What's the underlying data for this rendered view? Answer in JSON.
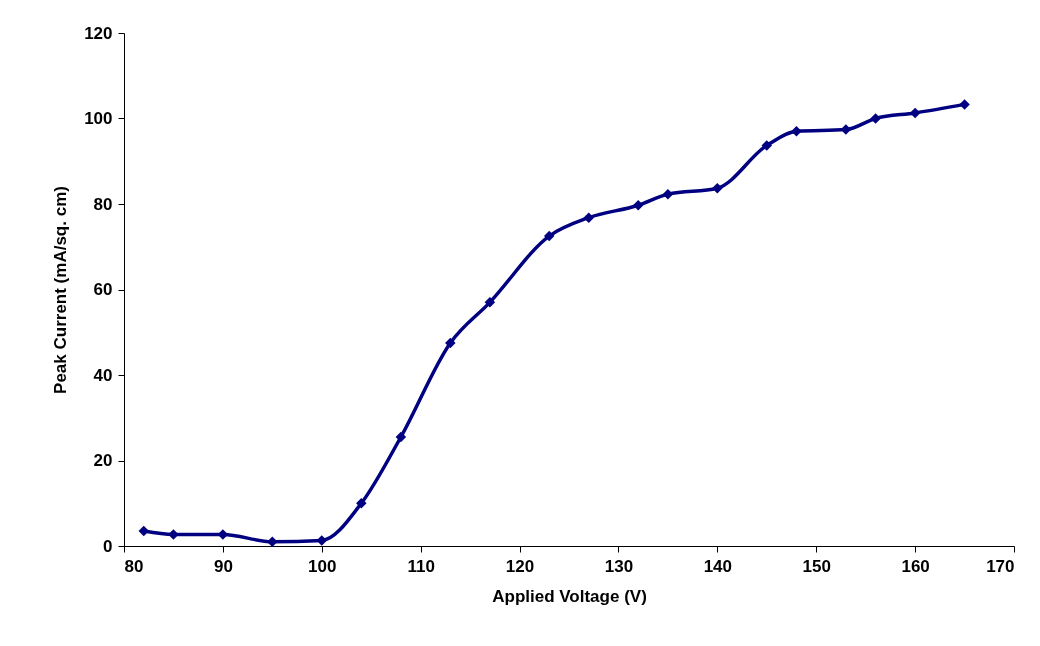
{
  "chart_data": {
    "type": "line",
    "xlabel": "Applied Voltage (V)",
    "ylabel": "Peak Current (mA/sq. cm)",
    "x": [
      82,
      85,
      90,
      95,
      100,
      104,
      108,
      113,
      117,
      123,
      127,
      132,
      135,
      140,
      145,
      148,
      153,
      156,
      160,
      165
    ],
    "series": [
      {
        "color": "#000080",
        "values": [
          3.5,
          2.7,
          2.7,
          1,
          1.3,
          10,
          25.5,
          47.5,
          57,
          72.5,
          76.8,
          79.7,
          82.3,
          83.7,
          93.7,
          97,
          97.4,
          100,
          101.3,
          103.3
        ]
      }
    ],
    "xlim": [
      80,
      170
    ],
    "xticks": [
      80,
      90,
      100,
      110,
      120,
      130,
      140,
      150,
      160,
      170
    ],
    "ylim": [
      0,
      120
    ],
    "yticks": [
      0,
      20,
      40,
      60,
      80,
      100,
      120
    ],
    "grid": false,
    "marker": "diamond",
    "line_style": "solid"
  }
}
